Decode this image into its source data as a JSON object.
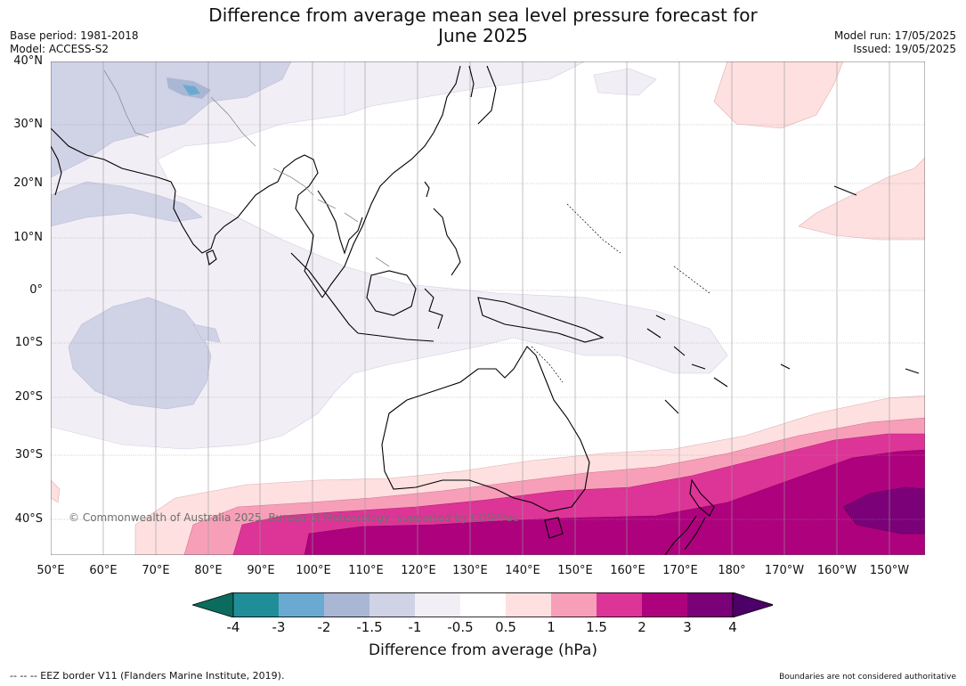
{
  "title_line1": "Difference from average mean sea level pressure forecast for",
  "title_line2": "June 2025",
  "base_period": "Base period: 1981-2018",
  "model": "Model: ACCESS-S2",
  "model_run": "Model run: 17/05/2025",
  "issued": "Issued: 19/05/2025",
  "lat_labels": [
    "40°N",
    "30°N",
    "20°N",
    "10°N",
    "0°",
    "10°S",
    "20°S",
    "30°S",
    "40°S"
  ],
  "lon_labels": [
    "50°E",
    "60°E",
    "70°E",
    "80°E",
    "90°E",
    "100°E",
    "110°E",
    "120°E",
    "130°E",
    "140°E",
    "150°E",
    "160°E",
    "170°E",
    "180°",
    "170°W",
    "160°W",
    "150°W"
  ],
  "colorbar": {
    "ticks": [
      "-4",
      "-3",
      "-2",
      "-1.5",
      "-1",
      "-0.5",
      "0.5",
      "1",
      "1.5",
      "2",
      "3",
      "4"
    ],
    "colors": [
      "#0b6b5c",
      "#1f8e99",
      "#6aaad2",
      "#a9b7d4",
      "#d0d2e6",
      "#f1eef6",
      "#ffffff",
      "#fde0df",
      "#f79fb9",
      "#dd3497",
      "#ae017e",
      "#7a0177",
      "#4d0067"
    ],
    "label": "Difference from average (hPa)"
  },
  "copyright": "© Commonwealth of Australia 2025, Bureau of Meteorology, supported by COSPPac",
  "footer_left": "--  --  -- EEZ border V11 (Flanders Marine Institute, 2019).",
  "footer_right": "Boundaries are not considered authoritative"
}
